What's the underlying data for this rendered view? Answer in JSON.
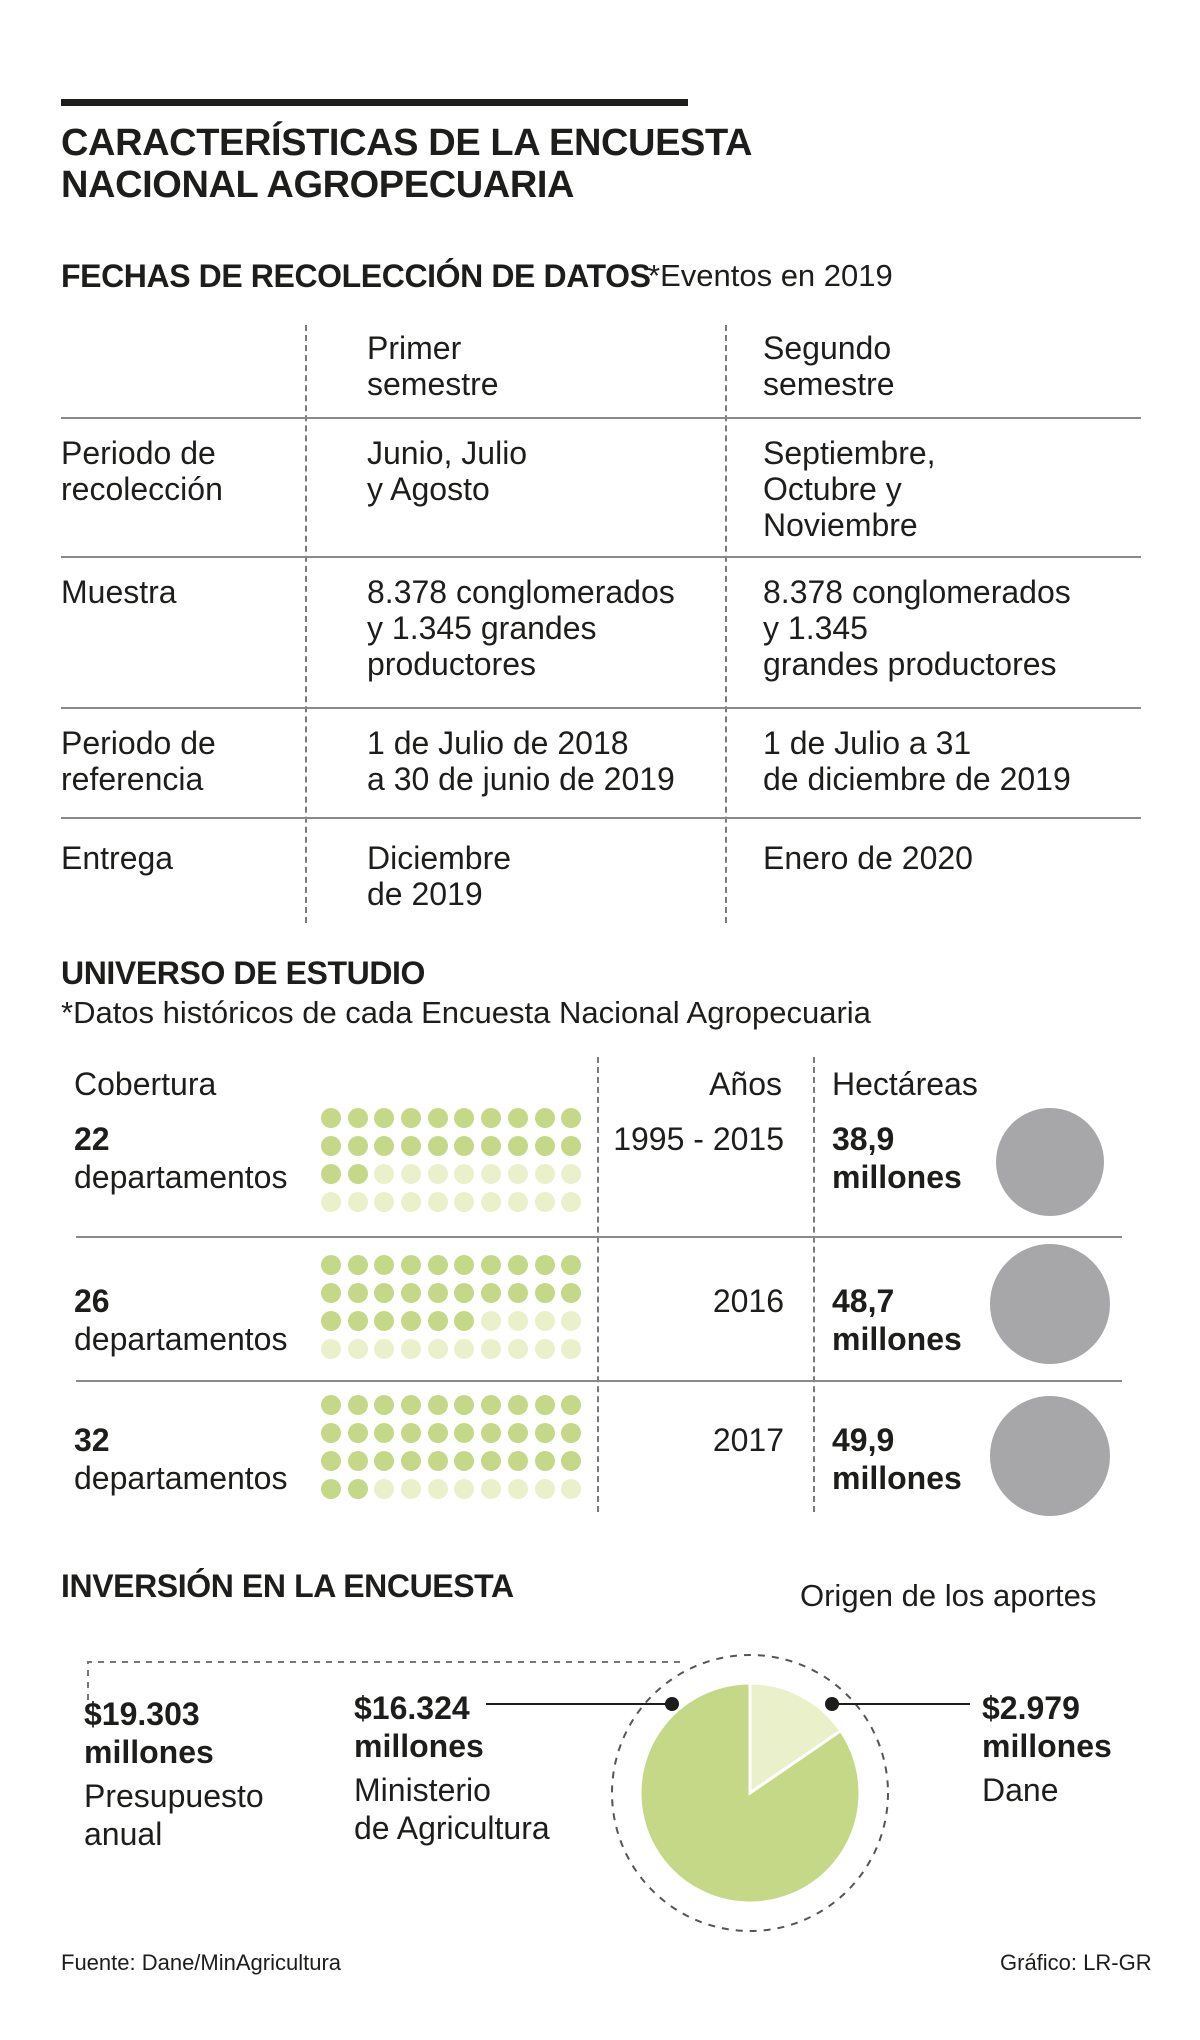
{
  "title": {
    "line1": "CARACTERÍSTICAS DE LA ENCUESTA",
    "line2": "NACIONAL AGROPECUARIA"
  },
  "dates_section": {
    "heading": "FECHAS DE RECOLECCIÓN DE DATOS",
    "note": "*Eventos en 2019",
    "col1_header": {
      "line1": "Primer",
      "line2": "semestre"
    },
    "col2_header": {
      "line1": "Segundo",
      "line2": "semestre"
    },
    "rows": [
      {
        "label": [
          "Periodo de",
          "recolección"
        ],
        "first": [
          "Junio, Julio",
          "y Agosto"
        ],
        "second": [
          "Septiembre,",
          "Octubre y",
          "Noviembre"
        ]
      },
      {
        "label": [
          "Muestra"
        ],
        "first": [
          "8.378 conglomerados",
          "y 1.345 grandes",
          "productores"
        ],
        "second": [
          "8.378 conglomerados",
          "y 1.345",
          "grandes productores"
        ]
      },
      {
        "label": [
          "Periodo de",
          "referencia"
        ],
        "first": [
          "1 de Julio de 2018",
          "a 30 de junio de 2019"
        ],
        "second": [
          "1 de Julio a 31",
          "de diciembre de 2019"
        ]
      },
      {
        "label": [
          "Entrega"
        ],
        "first": [
          "Diciembre",
          "de 2019"
        ],
        "second": [
          "Enero de 2020"
        ]
      }
    ]
  },
  "universe_section": {
    "heading": "UNIVERSO DE ESTUDIO",
    "note": "*Datos históricos de cada Encuesta Nacional Agropecuaria",
    "col_coverage": "Cobertura",
    "col_years": "Años",
    "col_hectares": "Hectáreas",
    "rows": [
      {
        "count": "22",
        "unit": "departamentos",
        "filled": 22,
        "total": 40,
        "years": "1995 - 2015",
        "hectares": "38,9",
        "hectares_unit": "millones",
        "hectares_value": 38.9
      },
      {
        "count": "26",
        "unit": "departamentos",
        "filled": 26,
        "total": 40,
        "years": "2016",
        "hectares": "48,7",
        "hectares_unit": "millones",
        "hectares_value": 48.7
      },
      {
        "count": "32",
        "unit": "departamentos",
        "filled": 32,
        "total": 40,
        "years": "2017",
        "hectares": "49,9",
        "hectares_unit": "millones",
        "hectares_value": 49.9
      }
    ]
  },
  "investment_section": {
    "heading": "INVERSIÓN EN LA ENCUESTA",
    "origin_label": "Origen de los aportes",
    "budget": {
      "value": "$19.303",
      "unit": "millones",
      "desc": [
        "Presupuesto",
        "anual"
      ]
    },
    "ministry": {
      "value": "$16.324",
      "unit": "millones",
      "desc": [
        "Ministerio",
        "de Agricultura"
      ],
      "amount": 16324
    },
    "dane": {
      "value": "$2.979",
      "unit": "millones",
      "desc": [
        "Dane"
      ],
      "amount": 2979
    }
  },
  "chart_data": {
    "type": "pie",
    "title": "Origen de los aportes",
    "categories": [
      "Ministerio de Agricultura",
      "Dane"
    ],
    "values": [
      16324,
      2979
    ],
    "total": 19303,
    "units": "millones de pesos"
  },
  "footer": {
    "source": "Fuente: Dane/MinAgricultura",
    "credit": "Gráfico: LR-GR"
  },
  "colors": {
    "green": "#c5d887",
    "light_green": "#eaf0c9",
    "gray_circle": "#a7a7aa",
    "text": "#1d1d1b"
  }
}
